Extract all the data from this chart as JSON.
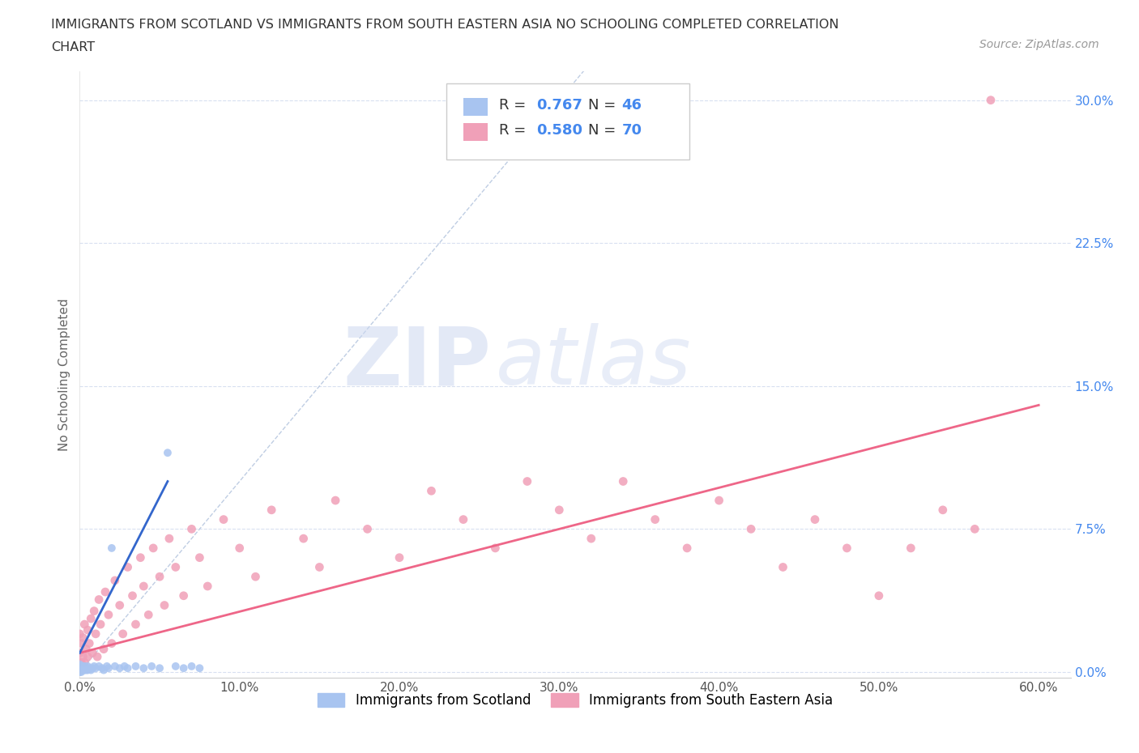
{
  "title_line1": "IMMIGRANTS FROM SCOTLAND VS IMMIGRANTS FROM SOUTH EASTERN ASIA NO SCHOOLING COMPLETED CORRELATION",
  "title_line2": "CHART",
  "source": "Source: ZipAtlas.com",
  "ylabel": "No Schooling Completed",
  "xlim": [
    0.0,
    0.62
  ],
  "ylim": [
    -0.003,
    0.315
  ],
  "xticks": [
    0.0,
    0.1,
    0.2,
    0.3,
    0.4,
    0.5,
    0.6
  ],
  "xticklabels": [
    "0.0%",
    "10.0%",
    "20.0%",
    "30.0%",
    "40.0%",
    "50.0%",
    "60.0%"
  ],
  "yticks": [
    0.0,
    0.075,
    0.15,
    0.225,
    0.3
  ],
  "yticklabels": [
    "0.0%",
    "7.5%",
    "15.0%",
    "22.5%",
    "30.0%"
  ],
  "scotland_color": "#a8c4f0",
  "sea_color": "#f0a0b8",
  "scotland_trend_color": "#3366cc",
  "sea_trend_color": "#ee6688",
  "diagonal_color": "#b8c8e0",
  "r_scotland": "0.767",
  "n_scotland": "46",
  "r_sea": "0.580",
  "n_sea": "70",
  "legend_label_scotland": "Immigrants from Scotland",
  "legend_label_sea": "Immigrants from South Eastern Asia",
  "watermark_zip": "ZIP",
  "watermark_atlas": "atlas",
  "background_color": "#ffffff",
  "grid_color": "#d8e0f0",
  "title_color": "#333333",
  "source_color": "#999999",
  "ytick_color": "#4488ee",
  "xtick_color": "#555555",
  "ylabel_color": "#666666",
  "r_color": "#4488ee",
  "legend_text_color": "#333333",
  "scotland_points_x": [
    0.0,
    0.0,
    0.0,
    0.0,
    0.0,
    0.0,
    0.0,
    0.0,
    0.001,
    0.001,
    0.001,
    0.001,
    0.002,
    0.002,
    0.002,
    0.003,
    0.003,
    0.003,
    0.004,
    0.004,
    0.005,
    0.005,
    0.006,
    0.007,
    0.008,
    0.009,
    0.01,
    0.012,
    0.014,
    0.015,
    0.017,
    0.018,
    0.02,
    0.022,
    0.025,
    0.028,
    0.03,
    0.035,
    0.04,
    0.045,
    0.05,
    0.055,
    0.06,
    0.065,
    0.07,
    0.075
  ],
  "scotland_points_y": [
    0.0,
    0.0,
    0.001,
    0.001,
    0.002,
    0.002,
    0.003,
    0.004,
    0.0,
    0.001,
    0.002,
    0.003,
    0.001,
    0.002,
    0.003,
    0.001,
    0.002,
    0.003,
    0.001,
    0.002,
    0.001,
    0.003,
    0.002,
    0.001,
    0.002,
    0.003,
    0.002,
    0.003,
    0.002,
    0.001,
    0.003,
    0.002,
    0.065,
    0.003,
    0.002,
    0.003,
    0.002,
    0.003,
    0.002,
    0.003,
    0.002,
    0.115,
    0.003,
    0.002,
    0.003,
    0.002
  ],
  "sea_points_x": [
    0.0,
    0.0,
    0.0,
    0.001,
    0.001,
    0.002,
    0.002,
    0.003,
    0.003,
    0.004,
    0.005,
    0.005,
    0.006,
    0.007,
    0.008,
    0.009,
    0.01,
    0.011,
    0.012,
    0.013,
    0.015,
    0.016,
    0.018,
    0.02,
    0.022,
    0.025,
    0.027,
    0.03,
    0.033,
    0.035,
    0.038,
    0.04,
    0.043,
    0.046,
    0.05,
    0.053,
    0.056,
    0.06,
    0.065,
    0.07,
    0.075,
    0.08,
    0.09,
    0.1,
    0.11,
    0.12,
    0.14,
    0.15,
    0.16,
    0.18,
    0.2,
    0.22,
    0.24,
    0.26,
    0.28,
    0.3,
    0.32,
    0.34,
    0.36,
    0.38,
    0.4,
    0.42,
    0.44,
    0.46,
    0.48,
    0.5,
    0.52,
    0.54,
    0.56,
    0.57
  ],
  "sea_points_y": [
    0.005,
    0.01,
    0.02,
    0.005,
    0.015,
    0.008,
    0.018,
    0.005,
    0.025,
    0.012,
    0.008,
    0.022,
    0.015,
    0.028,
    0.01,
    0.032,
    0.02,
    0.008,
    0.038,
    0.025,
    0.012,
    0.042,
    0.03,
    0.015,
    0.048,
    0.035,
    0.02,
    0.055,
    0.04,
    0.025,
    0.06,
    0.045,
    0.03,
    0.065,
    0.05,
    0.035,
    0.07,
    0.055,
    0.04,
    0.075,
    0.06,
    0.045,
    0.08,
    0.065,
    0.05,
    0.085,
    0.07,
    0.055,
    0.09,
    0.075,
    0.06,
    0.095,
    0.08,
    0.065,
    0.1,
    0.085,
    0.07,
    0.1,
    0.08,
    0.065,
    0.09,
    0.075,
    0.055,
    0.08,
    0.065,
    0.04,
    0.065,
    0.085,
    0.075,
    0.3
  ]
}
